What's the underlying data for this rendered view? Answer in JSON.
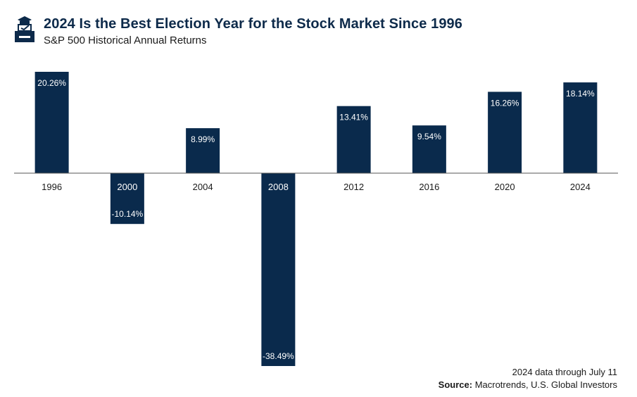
{
  "header": {
    "title": "2024 Is the Best Election Year for the Stock Market Since 1996",
    "subtitle": "S&P 500 Historical Annual Returns",
    "logo_icon": "ballot-box-icon"
  },
  "chart_data": {
    "type": "bar",
    "title": "2024 Is the Best Election Year for the Stock Market Since 1996",
    "subtitle": "S&P 500 Historical Annual Returns",
    "categories": [
      "1996",
      "2000",
      "2004",
      "2008",
      "2012",
      "2016",
      "2020",
      "2024"
    ],
    "values": [
      20.26,
      -10.14,
      8.99,
      -38.49,
      13.41,
      9.54,
      16.26,
      18.14
    ],
    "labels": [
      "20.26%",
      "-10.14%",
      "8.99%",
      "-38.49%",
      "13.41%",
      "9.54%",
      "16.26%",
      "18.14%"
    ],
    "xlabel": "",
    "ylabel": "",
    "ylim": [
      -38.49,
      20.26
    ],
    "grid": false,
    "bar_color": "#0a2a4c"
  },
  "footer": {
    "note": "2024 data through July 11",
    "source_label": "Source:",
    "source_text": " Macrotrends, U.S. Global Investors"
  }
}
